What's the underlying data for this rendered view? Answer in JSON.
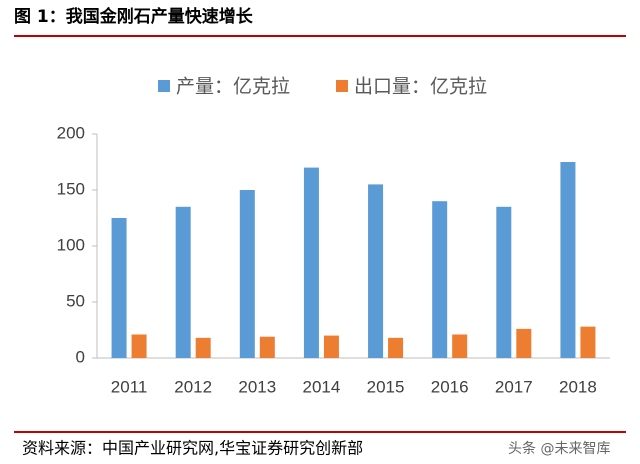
{
  "chart_data": {
    "type": "bar",
    "title": "图 1：我国金刚石产量快速增长",
    "categories": [
      "2011",
      "2012",
      "2013",
      "2014",
      "2015",
      "2016",
      "2017",
      "2018"
    ],
    "series": [
      {
        "name": "产量：亿克拉",
        "color": "#5b9bd5",
        "values": [
          125,
          135,
          150,
          170,
          155,
          140,
          135,
          175
        ]
      },
      {
        "name": "出口量：亿克拉",
        "color": "#ed7d31",
        "values": [
          21,
          18,
          19,
          20,
          18,
          21,
          26,
          28
        ]
      }
    ],
    "ylim": [
      0,
      200
    ],
    "yticks": [
      0,
      50,
      100,
      150,
      200
    ],
    "grid": false,
    "legend": "top",
    "source": "资料来源：中国产业研究网,华宝证券研究创新部",
    "watermark": "头条 @未来智库"
  }
}
